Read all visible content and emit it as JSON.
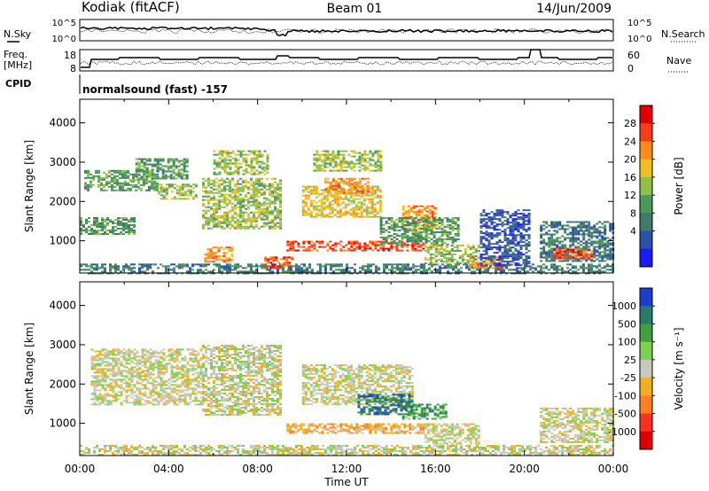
{
  "header": {
    "station": "Kodiak (fitACF)",
    "beam": "Beam 01",
    "date": "14/Jun/2009"
  },
  "status_panels": {
    "nsky_label": "N.Sky",
    "nsearch_label": "N.Search",
    "noise_ticks": [
      "10^5",
      "10^0"
    ],
    "freq_label_line1": "Freq.",
    "freq_label_line2": "[MHz]",
    "freq_ticks": [
      "18",
      "8"
    ],
    "nave_label": "Nave",
    "nave_ticks": [
      "60",
      "0"
    ],
    "cpid_label": "CPID",
    "cpid_text": "normalsound (fast) -157"
  },
  "chart_data": [
    {
      "type": "heatmap",
      "name": "power",
      "xlabel": "Time UT",
      "ylabel": "Slant Range [km]",
      "xlim": [
        0,
        24
      ],
      "ylim": [
        180,
        4600
      ],
      "x_ticks": [
        "00:00",
        "04:00",
        "08:00",
        "12:00",
        "16:00",
        "20:00",
        "00:00"
      ],
      "y_ticks": [
        1000,
        2000,
        3000,
        4000
      ],
      "colorbar": {
        "label": "Power [dB]",
        "ticks": [
          "4",
          "8",
          "12",
          "16",
          "20",
          "24",
          "28"
        ],
        "colors": [
          "#1a1aff",
          "#2e4fa8",
          "#3f7a6a",
          "#4a9a5a",
          "#8fc04a",
          "#f0c020",
          "#ff8c1a",
          "#ff3b1a",
          "#e00000"
        ]
      },
      "features": [
        {
          "t0": 0.0,
          "t1": 24.0,
          "r0": 180,
          "r1": 420,
          "level": 2
        },
        {
          "t0": 0.0,
          "t1": 2.5,
          "r0": 1150,
          "r1": 1600,
          "level": 3
        },
        {
          "t0": 0.2,
          "t1": 3.5,
          "r0": 2300,
          "r1": 2800,
          "level": 3
        },
        {
          "t0": 2.5,
          "t1": 4.8,
          "r0": 2600,
          "r1": 3100,
          "level": 3
        },
        {
          "t0": 3.5,
          "t1": 5.2,
          "r0": 2050,
          "r1": 2450,
          "level": 4
        },
        {
          "t0": 5.5,
          "t1": 9.0,
          "r0": 1300,
          "r1": 2600,
          "level": 4
        },
        {
          "t0": 5.6,
          "t1": 6.8,
          "r0": 480,
          "r1": 850,
          "level": 6
        },
        {
          "t0": 6.0,
          "t1": 8.5,
          "r0": 2700,
          "r1": 3300,
          "level": 4
        },
        {
          "t0": 8.3,
          "t1": 9.6,
          "r0": 300,
          "r1": 600,
          "level": 7
        },
        {
          "t0": 9.3,
          "t1": 15.5,
          "r0": 750,
          "r1": 1000,
          "level": 7
        },
        {
          "t0": 10.0,
          "t1": 13.5,
          "r0": 1600,
          "r1": 2400,
          "level": 5
        },
        {
          "t0": 11.0,
          "t1": 13.0,
          "r0": 2200,
          "r1": 2600,
          "level": 6
        },
        {
          "t0": 10.5,
          "t1": 13.5,
          "r0": 2800,
          "r1": 3300,
          "level": 4
        },
        {
          "t0": 14.5,
          "t1": 16.0,
          "r0": 1300,
          "r1": 1900,
          "level": 6
        },
        {
          "t0": 13.5,
          "t1": 17.0,
          "r0": 900,
          "r1": 1600,
          "level": 3
        },
        {
          "t0": 15.5,
          "t1": 18.0,
          "r0": 420,
          "r1": 900,
          "level": 4
        },
        {
          "t0": 17.5,
          "t1": 19.0,
          "r0": 300,
          "r1": 600,
          "level": 6
        },
        {
          "t0": 18.0,
          "t1": 20.2,
          "r0": 400,
          "r1": 1800,
          "level": 1
        },
        {
          "t0": 20.7,
          "t1": 24.0,
          "r0": 500,
          "r1": 1500,
          "level": 2
        },
        {
          "t0": 21.3,
          "t1": 23.0,
          "r0": 550,
          "r1": 800,
          "level": 7
        }
      ]
    },
    {
      "type": "heatmap",
      "name": "velocity",
      "xlabel": "Time UT",
      "ylabel": "Slant Range [km]",
      "xlim": [
        0,
        24
      ],
      "ylim": [
        180,
        4600
      ],
      "x_ticks": [
        "00:00",
        "04:00",
        "08:00",
        "12:00",
        "16:00",
        "20:00",
        "00:00"
      ],
      "y_ticks": [
        1000,
        2000,
        3000,
        4000
      ],
      "colorbar": {
        "label": "Velocity [m s⁻¹]",
        "ticks": [
          "1000",
          "500",
          "100",
          "25",
          "-25",
          "-100",
          "-500",
          "-1000"
        ],
        "colors": [
          "#1a3fd0",
          "#2a7a6a",
          "#3fa040",
          "#7ed050",
          "#c8c8c0",
          "#f0b020",
          "#ff8020",
          "#ff3020",
          "#e00000"
        ]
      },
      "features": [
        {
          "t0": 0.0,
          "t1": 24.0,
          "r0": 180,
          "r1": 450,
          "level": 4
        },
        {
          "t0": 0.5,
          "t1": 5.5,
          "r0": 1500,
          "r1": 2900,
          "level": 4
        },
        {
          "t0": 5.5,
          "t1": 9.0,
          "r0": 1200,
          "r1": 3000,
          "level": 4
        },
        {
          "t0": 9.3,
          "t1": 15.5,
          "r0": 750,
          "r1": 1000,
          "level": 5
        },
        {
          "t0": 10.0,
          "t1": 15.0,
          "r0": 1500,
          "r1": 2500,
          "level": 4
        },
        {
          "t0": 12.5,
          "t1": 15.0,
          "r0": 1250,
          "r1": 1750,
          "level": 1
        },
        {
          "t0": 14.5,
          "t1": 16.5,
          "r0": 1100,
          "r1": 1500,
          "level": 2
        },
        {
          "t0": 15.5,
          "t1": 18.0,
          "r0": 500,
          "r1": 1000,
          "level": 4
        },
        {
          "t0": 20.7,
          "t1": 24.0,
          "r0": 500,
          "r1": 1400,
          "level": 4
        }
      ]
    }
  ],
  "colors": {
    "frame": "#000000",
    "background": "#ffffff"
  }
}
